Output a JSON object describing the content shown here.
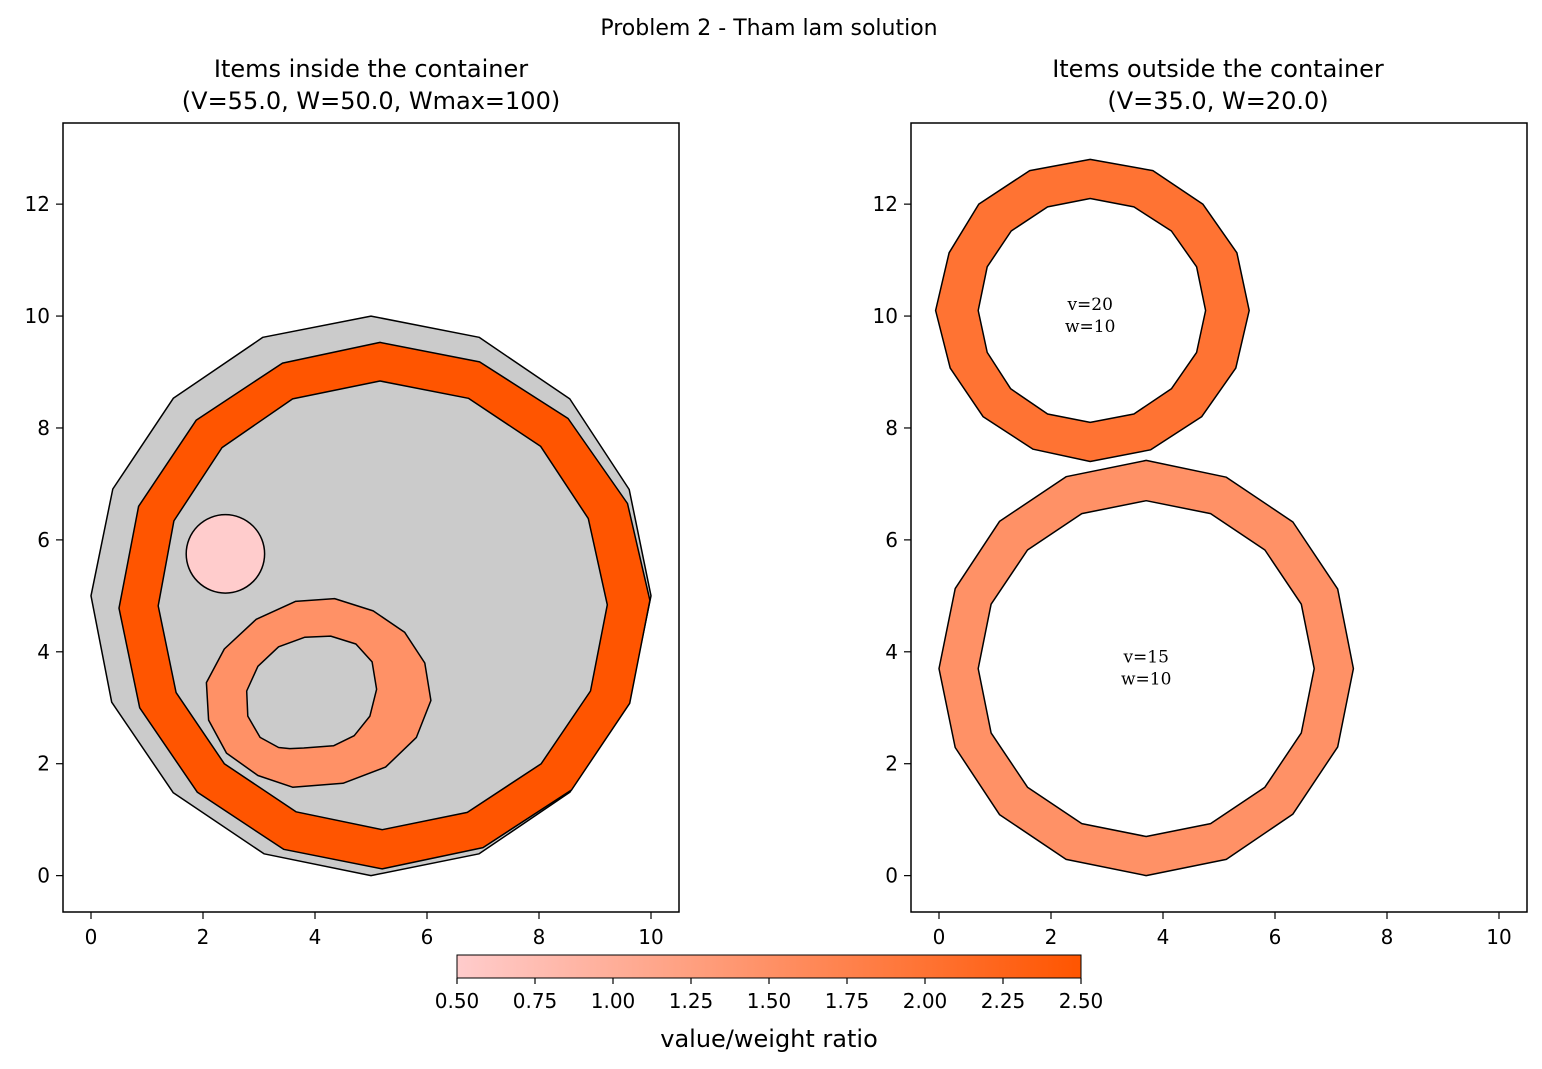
{
  "suptitle": "Problem 2 - Tham lam solution",
  "colors": {
    "container": "#cbcbcb",
    "edge": "#000000",
    "cmap_low": "#ffcccc",
    "cmap_high": "#ff5500"
  },
  "chart_data": [
    {
      "type": "polygon-packing",
      "title_line1": "Items inside the container",
      "title_line2": "(V=55.0, W=50.0, Wmax=100)",
      "xlim": [
        -0.5,
        10.5
      ],
      "ylim": [
        -0.65,
        13.45
      ],
      "xticks": [
        0,
        2,
        4,
        6,
        8,
        10
      ],
      "yticks": [
        0,
        2,
        4,
        6,
        8,
        10,
        12
      ],
      "container": [
        [
          5.0,
          0.0
        ],
        [
          6.93,
          0.39
        ],
        [
          8.55,
          1.49
        ],
        [
          9.61,
          3.11
        ],
        [
          10.0,
          5.0
        ],
        [
          9.61,
          6.9
        ],
        [
          8.55,
          8.52
        ],
        [
          6.93,
          9.62
        ],
        [
          5.0,
          10.0
        ],
        [
          3.07,
          9.62
        ],
        [
          1.47,
          8.53
        ],
        [
          0.39,
          6.91
        ],
        [
          0.0,
          5.0
        ],
        [
          0.37,
          3.1
        ],
        [
          1.47,
          1.48
        ],
        [
          3.09,
          0.39
        ]
      ],
      "items": [
        {
          "ratio": 2.5,
          "outer": [
            [
              5.2,
              0.12
            ],
            [
              7.0,
              0.5
            ],
            [
              8.58,
              1.53
            ],
            [
              9.62,
              3.08
            ],
            [
              9.98,
              4.92
            ],
            [
              9.58,
              6.65
            ],
            [
              8.52,
              8.17
            ],
            [
              6.94,
              9.18
            ],
            [
              5.16,
              9.53
            ],
            [
              3.42,
              9.16
            ],
            [
              1.88,
              8.14
            ],
            [
              0.85,
              6.6
            ],
            [
              0.5,
              4.78
            ],
            [
              0.87,
              3.0
            ],
            [
              1.9,
              1.49
            ],
            [
              3.44,
              0.47
            ]
          ],
          "inner": [
            [
              5.2,
              0.82
            ],
            [
              6.72,
              1.13
            ],
            [
              8.04,
              2.0
            ],
            [
              8.92,
              3.3
            ],
            [
              9.22,
              4.84
            ],
            [
              8.88,
              6.38
            ],
            [
              8.03,
              7.67
            ],
            [
              6.74,
              8.53
            ],
            [
              5.16,
              8.84
            ],
            [
              3.6,
              8.52
            ],
            [
              2.34,
              7.65
            ],
            [
              1.48,
              6.34
            ],
            [
              1.2,
              4.82
            ],
            [
              1.52,
              3.27
            ],
            [
              2.38,
              2.0
            ],
            [
              3.66,
              1.14
            ]
          ]
        },
        {
          "ratio": 1.5,
          "outer": [
            [
              3.6,
              1.58
            ],
            [
              4.5,
              1.65
            ],
            [
              5.26,
              1.94
            ],
            [
              5.81,
              2.47
            ],
            [
              6.07,
              3.13
            ],
            [
              5.96,
              3.8
            ],
            [
              5.6,
              4.35
            ],
            [
              5.04,
              4.73
            ],
            [
              4.35,
              4.95
            ],
            [
              3.65,
              4.9
            ],
            [
              2.95,
              4.58
            ],
            [
              2.38,
              4.05
            ],
            [
              2.06,
              3.45
            ],
            [
              2.1,
              2.78
            ],
            [
              2.42,
              2.19
            ],
            [
              2.98,
              1.79
            ]
          ],
          "inner": [
            [
              3.8,
              2.28
            ],
            [
              4.33,
              2.32
            ],
            [
              4.7,
              2.5
            ],
            [
              4.98,
              2.85
            ],
            [
              5.1,
              3.33
            ],
            [
              5.02,
              3.82
            ],
            [
              4.73,
              4.14
            ],
            [
              4.28,
              4.28
            ],
            [
              3.82,
              4.26
            ],
            [
              3.35,
              4.09
            ],
            [
              2.98,
              3.74
            ],
            [
              2.78,
              3.3
            ],
            [
              2.8,
              2.85
            ],
            [
              3.02,
              2.47
            ],
            [
              3.35,
              2.29
            ],
            [
              3.55,
              2.27
            ]
          ]
        },
        {
          "ratio": 0.5,
          "circle": {
            "cx": 2.4,
            "cy": 5.75,
            "r": 0.7
          }
        }
      ]
    },
    {
      "type": "polygon-packing",
      "title_line1": "Items outside the container",
      "title_line2": "(V=35.0, W=20.0)",
      "xlim": [
        -0.5,
        10.5
      ],
      "ylim": [
        -0.65,
        13.45
      ],
      "xticks": [
        0,
        2,
        4,
        6,
        8,
        10
      ],
      "yticks": [
        0,
        2,
        4,
        6,
        8,
        10,
        12
      ],
      "items": [
        {
          "ratio": 2.0,
          "label_v": "v=20",
          "label_w": "w=10",
          "label_at": [
            2.7,
            10.0
          ],
          "outer": [
            [
              2.7,
              7.4
            ],
            [
              3.78,
              7.61
            ],
            [
              4.69,
              8.2
            ],
            [
              5.3,
              9.07
            ],
            [
              5.54,
              10.1
            ],
            [
              5.32,
              11.13
            ],
            [
              4.71,
              12.0
            ],
            [
              3.82,
              12.6
            ],
            [
              2.7,
              12.8
            ],
            [
              1.62,
              12.6
            ],
            [
              0.71,
              12.0
            ],
            [
              0.18,
              11.13
            ],
            [
              -0.06,
              10.1
            ],
            [
              0.2,
              9.07
            ],
            [
              0.79,
              8.2
            ],
            [
              1.68,
              7.62
            ]
          ],
          "inner": [
            [
              2.7,
              8.1
            ],
            [
              3.48,
              8.25
            ],
            [
              4.15,
              8.7
            ],
            [
              4.6,
              9.35
            ],
            [
              4.76,
              10.1
            ],
            [
              4.6,
              10.88
            ],
            [
              4.15,
              11.52
            ],
            [
              3.48,
              11.95
            ],
            [
              2.7,
              12.1
            ],
            [
              1.94,
              11.95
            ],
            [
              1.29,
              11.52
            ],
            [
              0.86,
              10.88
            ],
            [
              0.7,
              10.1
            ],
            [
              0.86,
              9.35
            ],
            [
              1.28,
              8.7
            ],
            [
              1.94,
              8.25
            ]
          ]
        },
        {
          "ratio": 1.5,
          "label_v": "v=15",
          "label_w": "w=10",
          "label_at": [
            3.7,
            3.7
          ],
          "outer": [
            [
              3.7,
              0.0
            ],
            [
              5.13,
              0.29
            ],
            [
              6.32,
              1.1
            ],
            [
              7.12,
              2.3
            ],
            [
              7.4,
              3.7
            ],
            [
              7.12,
              5.12
            ],
            [
              6.32,
              6.32
            ],
            [
              5.13,
              7.12
            ],
            [
              3.7,
              7.42
            ],
            [
              2.27,
              7.13
            ],
            [
              1.08,
              6.33
            ],
            [
              0.29,
              5.13
            ],
            [
              0.0,
              3.7
            ],
            [
              0.29,
              2.29
            ],
            [
              1.08,
              1.09
            ],
            [
              2.27,
              0.29
            ]
          ],
          "inner": [
            [
              3.7,
              0.7
            ],
            [
              4.85,
              0.93
            ],
            [
              5.82,
              1.58
            ],
            [
              6.47,
              2.55
            ],
            [
              6.7,
              3.7
            ],
            [
              6.47,
              4.85
            ],
            [
              5.82,
              5.82
            ],
            [
              4.85,
              6.47
            ],
            [
              3.7,
              6.7
            ],
            [
              2.55,
              6.47
            ],
            [
              1.58,
              5.82
            ],
            [
              0.93,
              4.85
            ],
            [
              0.7,
              3.7
            ],
            [
              0.93,
              2.55
            ],
            [
              1.58,
              1.58
            ],
            [
              2.55,
              0.93
            ]
          ]
        }
      ]
    }
  ],
  "colorbar": {
    "label": "value/weight ratio",
    "min": 0.5,
    "max": 2.5,
    "ticks": [
      "0.50",
      "0.75",
      "1.00",
      "1.25",
      "1.50",
      "1.75",
      "2.00",
      "2.25",
      "2.50"
    ]
  }
}
